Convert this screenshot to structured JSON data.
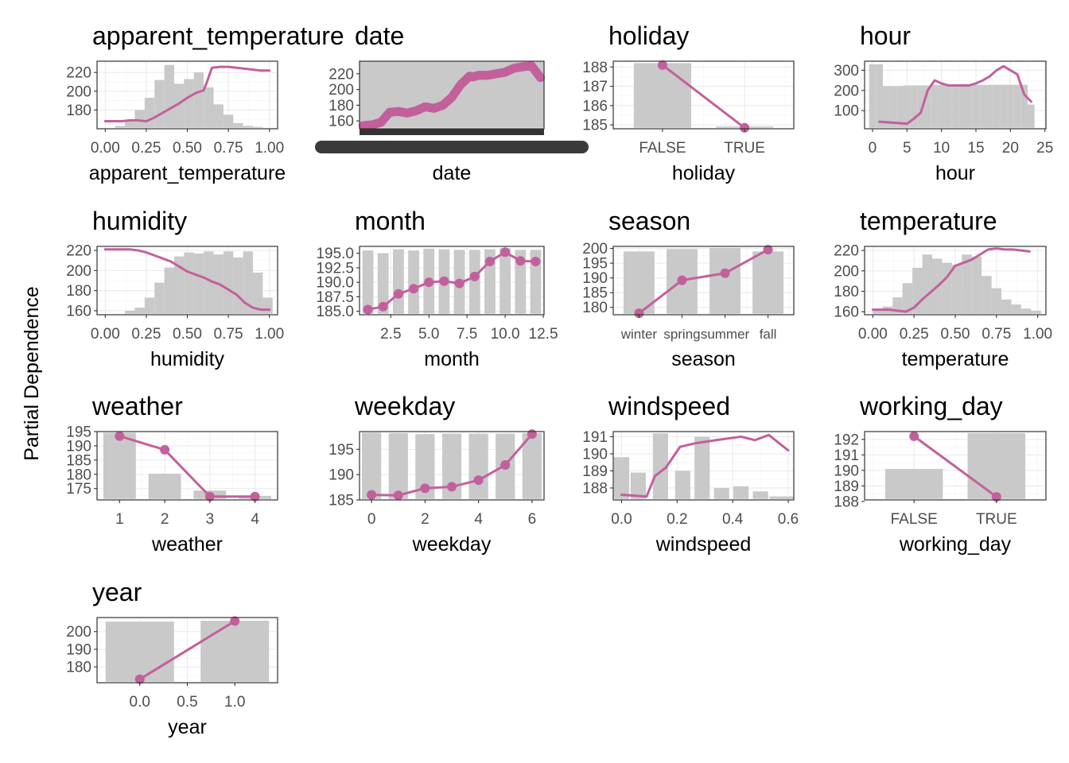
{
  "ylabel": "Partial Dependence",
  "colors": {
    "line": "#c2609c",
    "bars": "#c9c9c9",
    "frame": "#333333"
  },
  "chart_data": [
    {
      "id": "apparent_temperature",
      "type": "line",
      "title": "apparent_temperature",
      "xlabel": "apparent_temperature",
      "xlim": [
        -0.05,
        1.05
      ],
      "ylim": [
        160,
        232
      ],
      "xticks": [
        0,
        0.25,
        0.5,
        0.75,
        1
      ],
      "xtick_labels": [
        "0.00",
        "0.25",
        "0.50",
        "0.75",
        "1.00"
      ],
      "yticks": [
        180,
        200,
        220
      ],
      "ytick_labels": [
        "180",
        "200",
        "220"
      ],
      "hist": [
        [
          0.03,
          161
        ],
        [
          0.09,
          163
        ],
        [
          0.15,
          168
        ],
        [
          0.21,
          180
        ],
        [
          0.27,
          193
        ],
        [
          0.33,
          212
        ],
        [
          0.39,
          228
        ],
        [
          0.45,
          208
        ],
        [
          0.51,
          213
        ],
        [
          0.57,
          220
        ],
        [
          0.63,
          204
        ],
        [
          0.69,
          186
        ],
        [
          0.75,
          175
        ],
        [
          0.81,
          166
        ],
        [
          0.87,
          163
        ],
        [
          0.93,
          162
        ],
        [
          0.99,
          161
        ]
      ],
      "hist_width": 0.06,
      "show_points": false,
      "x": [
        0,
        0.05,
        0.1,
        0.15,
        0.2,
        0.25,
        0.3,
        0.35,
        0.4,
        0.45,
        0.5,
        0.55,
        0.6,
        0.62,
        0.65,
        0.7,
        0.75,
        0.8,
        0.85,
        0.9,
        0.95,
        1.0
      ],
      "y": [
        168,
        168,
        168,
        169,
        169,
        168,
        172,
        177,
        182,
        187,
        193,
        198,
        201,
        210,
        225,
        226,
        226,
        225,
        224,
        223,
        222,
        222
      ]
    },
    {
      "id": "date",
      "type": "line",
      "title": "date",
      "xlabel": "date",
      "xlim": [
        -0.02,
        1.02
      ],
      "ylim": [
        150,
        236
      ],
      "xticks": [],
      "xtick_labels": [],
      "yticks": [
        160,
        180,
        200,
        220
      ],
      "ytick_labels": [
        "160",
        "180",
        "200",
        "220"
      ],
      "hist": [
        [
          0.5,
          236
        ]
      ],
      "hist_width": 1.04,
      "show_points": true,
      "dense": true,
      "obscured_axis": true,
      "x": [
        0,
        0.05,
        0.1,
        0.15,
        0.2,
        0.25,
        0.3,
        0.35,
        0.4,
        0.45,
        0.5,
        0.55,
        0.6,
        0.62,
        0.65,
        0.7,
        0.75,
        0.8,
        0.85,
        0.9,
        0.95,
        1.0
      ],
      "y": [
        154,
        155,
        158,
        171,
        172,
        170,
        173,
        178,
        176,
        180,
        190,
        206,
        217,
        216,
        218,
        218,
        220,
        222,
        227,
        229,
        230,
        215
      ]
    },
    {
      "id": "holiday",
      "type": "line",
      "title": "holiday",
      "xlabel": "holiday",
      "xlim": [
        0.4,
        2.6
      ],
      "ylim": [
        184.8,
        188.3
      ],
      "xticks": [
        1,
        2
      ],
      "xtick_labels": [
        "FALSE",
        "TRUE"
      ],
      "yticks": [
        185,
        186,
        187,
        188
      ],
      "ytick_labels": [
        "185",
        "186",
        "187",
        "188"
      ],
      "hist": [
        [
          1,
          188.2
        ],
        [
          2,
          184.92
        ]
      ],
      "hist_width": 0.7,
      "show_points": true,
      "x": [
        1,
        2
      ],
      "y": [
        188.1,
        184.85
      ]
    },
    {
      "id": "hour",
      "type": "line",
      "title": "hour",
      "xlabel": "hour",
      "xlim": [
        -1.15,
        25.15
      ],
      "ylim": [
        10,
        345
      ],
      "xticks": [
        0,
        5,
        10,
        15,
        20,
        25
      ],
      "xtick_labels": [
        "0",
        "5",
        "10",
        "15",
        "20",
        "25"
      ],
      "yticks": [
        100,
        200,
        300
      ],
      "ytick_labels": [
        "100",
        "200",
        "300"
      ],
      "hist": [
        [
          0,
          330
        ],
        [
          1,
          330
        ],
        [
          2,
          222
        ],
        [
          3,
          222
        ],
        [
          4,
          222
        ],
        [
          5,
          225
        ],
        [
          6,
          225
        ],
        [
          7,
          225
        ],
        [
          8,
          225
        ],
        [
          9,
          228
        ],
        [
          10,
          228
        ],
        [
          11,
          228
        ],
        [
          12,
          228
        ],
        [
          13,
          228
        ],
        [
          14,
          228
        ],
        [
          15,
          228
        ],
        [
          16,
          228
        ],
        [
          17,
          228
        ],
        [
          18,
          228
        ],
        [
          19,
          228
        ],
        [
          20,
          228
        ],
        [
          21,
          228
        ],
        [
          22,
          228
        ],
        [
          23,
          130
        ]
      ],
      "hist_width": 1.0,
      "show_points": false,
      "x": [
        1,
        3,
        5,
        6,
        7,
        8,
        9,
        10,
        11,
        12,
        13,
        14,
        15,
        16,
        17,
        18,
        19,
        20,
        21,
        22,
        23
      ],
      "y": [
        45,
        40,
        35,
        60,
        90,
        200,
        250,
        235,
        225,
        225,
        225,
        225,
        235,
        250,
        270,
        300,
        320,
        300,
        280,
        180,
        145
      ]
    },
    {
      "id": "humidity",
      "type": "line",
      "title": "humidity",
      "xlabel": "humidity",
      "xlim": [
        -0.05,
        1.05
      ],
      "ylim": [
        156,
        224
      ],
      "xticks": [
        0,
        0.25,
        0.5,
        0.75,
        1
      ],
      "xtick_labels": [
        "0.00",
        "0.25",
        "0.50",
        "0.75",
        "1.00"
      ],
      "yticks": [
        160,
        180,
        200,
        220
      ],
      "ytick_labels": [
        "160",
        "180",
        "200",
        "220"
      ],
      "hist": [
        [
          0.15,
          160
        ],
        [
          0.21,
          163
        ],
        [
          0.27,
          173
        ],
        [
          0.33,
          188
        ],
        [
          0.39,
          203
        ],
        [
          0.45,
          214
        ],
        [
          0.51,
          218
        ],
        [
          0.57,
          217
        ],
        [
          0.63,
          219
        ],
        [
          0.69,
          216
        ],
        [
          0.75,
          219
        ],
        [
          0.81,
          213
        ],
        [
          0.87,
          219
        ],
        [
          0.93,
          198
        ],
        [
          0.99,
          173
        ]
      ],
      "hist_width": 0.06,
      "show_points": false,
      "x": [
        0,
        0.05,
        0.1,
        0.15,
        0.2,
        0.25,
        0.3,
        0.35,
        0.4,
        0.45,
        0.5,
        0.55,
        0.6,
        0.65,
        0.7,
        0.75,
        0.8,
        0.85,
        0.9,
        0.95,
        1.0
      ],
      "y": [
        221,
        221,
        221,
        221,
        220,
        218,
        215,
        212,
        209,
        204,
        199,
        196,
        193,
        189,
        186,
        181,
        176,
        168,
        163,
        161,
        161
      ]
    },
    {
      "id": "month",
      "type": "line",
      "title": "month",
      "xlabel": "month",
      "xlim": [
        0.45,
        12.55
      ],
      "ylim": [
        184.4,
        196.2
      ],
      "xticks": [
        2.5,
        5,
        7.5,
        10,
        12.5
      ],
      "xtick_labels": [
        "2.5",
        "5.0",
        "7.5",
        "10.0",
        "12.5"
      ],
      "yticks": [
        185,
        187.5,
        190,
        192.5,
        195
      ],
      "ytick_labels": [
        "185.0",
        "187.5",
        "190.0",
        "192.5",
        "195.0"
      ],
      "hist": [
        [
          1,
          195.5
        ],
        [
          2,
          195.0
        ],
        [
          3,
          195.7
        ],
        [
          4,
          195.5
        ],
        [
          5,
          195.8
        ],
        [
          6,
          195.7
        ],
        [
          7,
          195.6
        ],
        [
          8,
          195.6
        ],
        [
          9,
          195.7
        ],
        [
          10,
          195.9
        ],
        [
          11,
          195.6
        ],
        [
          12,
          195.6
        ]
      ],
      "hist_width": 0.72,
      "show_points": true,
      "x": [
        1,
        2,
        3,
        4,
        5,
        6,
        7,
        8,
        9,
        10,
        11,
        12
      ],
      "y": [
        185.3,
        185.8,
        188.0,
        188.9,
        190.0,
        190.2,
        189.8,
        191.0,
        193.6,
        195.2,
        193.7,
        193.6
      ]
    },
    {
      "id": "season",
      "type": "line",
      "title": "season",
      "xlabel": "season",
      "xlim": [
        0.4,
        4.6
      ],
      "ylim": [
        177.5,
        200.7
      ],
      "xticks": [
        1,
        2,
        3,
        4
      ],
      "xtick_labels": [
        "winter",
        "spring",
        "summer",
        "fall"
      ],
      "small_xticks": true,
      "yticks": [
        180,
        185,
        190,
        195,
        200
      ],
      "ytick_labels": [
        "180",
        "185",
        "190",
        "195",
        "200"
      ],
      "hist": [
        [
          1,
          199.0
        ],
        [
          2,
          199.8
        ],
        [
          3,
          200.2
        ],
        [
          4,
          199.0
        ]
      ],
      "hist_width": 0.72,
      "show_points": true,
      "x": [
        1,
        2,
        3,
        4
      ],
      "y": [
        178.0,
        189.2,
        191.6,
        199.6
      ]
    },
    {
      "id": "temperature",
      "type": "line",
      "title": "temperature",
      "xlabel": "temperature",
      "xlim": [
        -0.05,
        1.05
      ],
      "ylim": [
        157,
        224
      ],
      "xticks": [
        0,
        0.25,
        0.5,
        0.75,
        1
      ],
      "xtick_labels": [
        "0.00",
        "0.25",
        "0.50",
        "0.75",
        "1.00"
      ],
      "yticks": [
        160,
        180,
        200,
        220
      ],
      "ytick_labels": [
        "160",
        "180",
        "200",
        "220"
      ],
      "hist": [
        [
          0.03,
          162
        ],
        [
          0.09,
          165
        ],
        [
          0.15,
          174
        ],
        [
          0.21,
          188
        ],
        [
          0.27,
          203
        ],
        [
          0.33,
          216
        ],
        [
          0.39,
          212
        ],
        [
          0.45,
          208
        ],
        [
          0.51,
          206
        ],
        [
          0.57,
          216
        ],
        [
          0.63,
          214
        ],
        [
          0.69,
          195
        ],
        [
          0.75,
          183
        ],
        [
          0.81,
          172
        ],
        [
          0.87,
          167
        ],
        [
          0.93,
          163
        ],
        [
          0.99,
          161
        ]
      ],
      "hist_width": 0.06,
      "show_points": false,
      "x": [
        0,
        0.05,
        0.1,
        0.15,
        0.2,
        0.25,
        0.3,
        0.35,
        0.4,
        0.45,
        0.5,
        0.55,
        0.6,
        0.65,
        0.7,
        0.75,
        0.8,
        0.85,
        0.9,
        0.95
      ],
      "y": [
        162,
        162,
        162,
        161,
        160,
        164,
        172,
        179,
        186,
        194,
        205,
        208,
        211,
        216,
        221,
        222,
        221,
        221,
        220,
        219
      ]
    },
    {
      "id": "weather",
      "type": "line",
      "title": "weather",
      "xlabel": "weather",
      "xlim": [
        0.5,
        4.5
      ],
      "ylim": [
        171,
        195
      ],
      "xticks": [
        1,
        2,
        3,
        4
      ],
      "xtick_labels": [
        "1",
        "2",
        "3",
        "4"
      ],
      "yticks": [
        175,
        180,
        185,
        190,
        195
      ],
      "ytick_labels": [
        "175",
        "180",
        "185",
        "190",
        "195"
      ],
      "hist": [
        [
          1,
          194.6
        ],
        [
          2,
          180.2
        ],
        [
          3,
          174.3
        ],
        [
          4,
          172.4
        ]
      ],
      "hist_width": 0.72,
      "show_points": true,
      "x": [
        1,
        2,
        3,
        4
      ],
      "y": [
        193.4,
        188.6,
        172.2,
        172.2
      ]
    },
    {
      "id": "weekday",
      "type": "line",
      "title": "weekday",
      "xlabel": "weekday",
      "xlim": [
        -0.45,
        6.45
      ],
      "ylim": [
        185,
        198.5
      ],
      "xticks": [
        0,
        2,
        4,
        6
      ],
      "xtick_labels": [
        "0",
        "2",
        "4",
        "6"
      ],
      "yticks": [
        185,
        190,
        195
      ],
      "ytick_labels": [
        "185",
        "190",
        "195"
      ],
      "hist": [
        [
          0,
          198.3
        ],
        [
          1,
          198.2
        ],
        [
          2,
          198.0
        ],
        [
          3,
          198.1
        ],
        [
          4,
          198.1
        ],
        [
          5,
          198.1
        ],
        [
          6,
          198.2
        ]
      ],
      "hist_width": 0.72,
      "show_points": true,
      "x": [
        0,
        1,
        2,
        3,
        4,
        5,
        6
      ],
      "y": [
        186.0,
        185.9,
        187.3,
        187.6,
        188.9,
        191.9,
        198.0
      ]
    },
    {
      "id": "windspeed",
      "type": "line",
      "title": "windspeed",
      "xlabel": "windspeed",
      "xlim": [
        -0.03,
        0.62
      ],
      "ylim": [
        187.3,
        191.3
      ],
      "xticks": [
        0,
        0.2,
        0.4,
        0.6
      ],
      "xtick_labels": [
        "0.0",
        "0.2",
        "0.4",
        "0.6"
      ],
      "yticks": [
        188,
        189,
        190,
        191
      ],
      "ytick_labels": [
        "188",
        "189",
        "190",
        "191"
      ],
      "hist": [
        [
          0.0,
          189.8
        ],
        [
          0.06,
          188.9
        ],
        [
          0.14,
          191.2
        ],
        [
          0.22,
          189.0
        ],
        [
          0.29,
          191.0
        ],
        [
          0.36,
          188.0
        ],
        [
          0.43,
          188.1
        ],
        [
          0.5,
          187.8
        ],
        [
          0.56,
          187.5
        ],
        [
          0.6,
          187.5
        ]
      ],
      "hist_width": 0.055,
      "show_points": false,
      "x": [
        0.0,
        0.09,
        0.12,
        0.16,
        0.21,
        0.26,
        0.34,
        0.43,
        0.48,
        0.53,
        0.6
      ],
      "y": [
        187.6,
        187.5,
        188.7,
        189.2,
        190.4,
        190.6,
        190.8,
        191.0,
        190.8,
        191.1,
        190.2
      ]
    },
    {
      "id": "working_day",
      "type": "line",
      "title": "working_day",
      "xlabel": "working_day",
      "xlim": [
        0.4,
        2.6
      ],
      "ylim": [
        188.1,
        192.5
      ],
      "xticks": [
        1,
        2
      ],
      "xtick_labels": [
        "FALSE",
        "TRUE"
      ],
      "yticks": [
        188,
        189,
        190,
        191,
        192
      ],
      "ytick_labels": [
        "188",
        "189",
        "190",
        "191",
        "192"
      ],
      "hist": [
        [
          1,
          190.1
        ],
        [
          2,
          192.4
        ]
      ],
      "hist_width": 0.7,
      "show_points": true,
      "x": [
        1,
        2
      ],
      "y": [
        192.2,
        188.3
      ]
    },
    {
      "id": "year",
      "type": "line",
      "title": "year",
      "xlabel": "year",
      "xlim": [
        -0.45,
        1.45
      ],
      "ylim": [
        171,
        208
      ],
      "xticks": [
        0,
        0.5,
        1
      ],
      "xtick_labels": [
        "0.0",
        "0.5",
        "1.0"
      ],
      "yticks": [
        180,
        190,
        200
      ],
      "ytick_labels": [
        "180",
        "190",
        "200"
      ],
      "hist": [
        [
          0,
          205.7
        ],
        [
          1,
          206.2
        ]
      ],
      "hist_width": 0.72,
      "show_points": true,
      "x": [
        0,
        1
      ],
      "y": [
        173.0,
        206.0
      ]
    }
  ]
}
